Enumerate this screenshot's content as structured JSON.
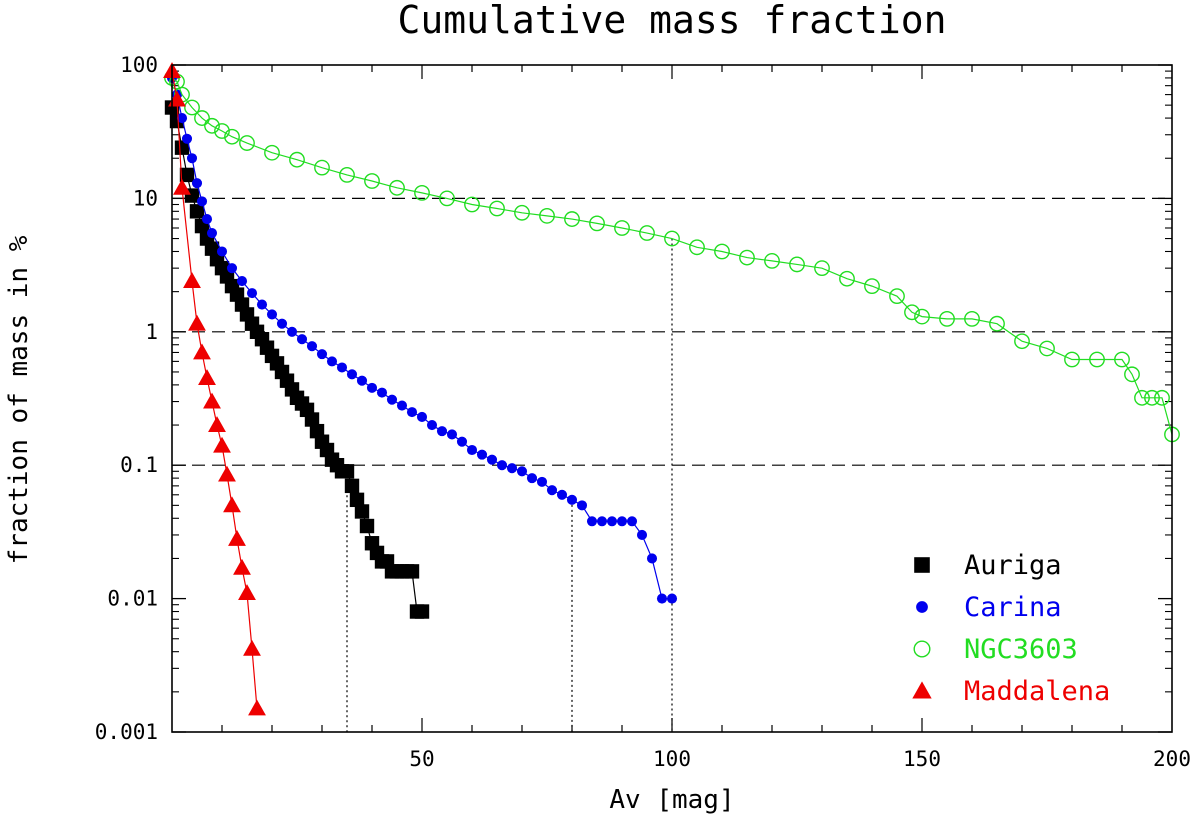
{
  "chart_data": {
    "type": "line",
    "title": "Cumulative mass fraction",
    "xlabel": "Av [mag]",
    "ylabel": "fraction of mass in %",
    "xscale": "linear",
    "yscale": "log",
    "xlim": [
      0,
      200
    ],
    "ylim": [
      0.001,
      100
    ],
    "x_ticks": [
      {
        "value": 50,
        "label": "50"
      },
      {
        "value": 100,
        "label": "100"
      },
      {
        "value": 150,
        "label": "150"
      },
      {
        "value": 200,
        "label": "200"
      }
    ],
    "y_ticks": [
      {
        "value": 100,
        "label": "100"
      },
      {
        "value": 10,
        "label": "10"
      },
      {
        "value": 1,
        "label": "1"
      },
      {
        "value": 0.1,
        "label": "0.1"
      },
      {
        "value": 0.01,
        "label": "0.01"
      },
      {
        "value": 0.001,
        "label": "0.001"
      }
    ],
    "reference_lines": {
      "horizontal_dashed": [
        10,
        1,
        0.1
      ],
      "vertical_dotted": [
        {
          "x": 35,
          "y_top": 0.1
        },
        {
          "x": 80,
          "y_top": 0.055
        },
        {
          "x": 100,
          "y_top": 5
        }
      ]
    },
    "legend_position": "bottom-right",
    "series": [
      {
        "name": "Auriga",
        "color": "#000000",
        "marker": "filled-square",
        "x": [
          0,
          1,
          2,
          3,
          4,
          5,
          6,
          7,
          8,
          9,
          10,
          11,
          12,
          13,
          14,
          15,
          16,
          17,
          18,
          19,
          20,
          21,
          22,
          23,
          24,
          25,
          26,
          27,
          28,
          29,
          30,
          31,
          32,
          33,
          34,
          35,
          36,
          37,
          38,
          39,
          40,
          41,
          42,
          43,
          44,
          45,
          46,
          47,
          48,
          49,
          50
        ],
        "y": [
          48,
          38,
          24,
          15,
          10.5,
          8,
          6.2,
          5,
          4.2,
          3.5,
          3,
          2.6,
          2.2,
          1.9,
          1.6,
          1.35,
          1.15,
          1.0,
          0.88,
          0.76,
          0.66,
          0.58,
          0.5,
          0.43,
          0.37,
          0.32,
          0.29,
          0.26,
          0.22,
          0.18,
          0.15,
          0.13,
          0.11,
          0.1,
          0.09,
          0.09,
          0.07,
          0.055,
          0.045,
          0.035,
          0.026,
          0.022,
          0.019,
          0.019,
          0.016,
          0.016,
          0.016,
          0.016,
          0.016,
          0.008,
          0.008
        ]
      },
      {
        "name": "Carina",
        "color": "#0000ee",
        "marker": "filled-circle",
        "x": [
          0,
          1,
          2,
          3,
          4,
          5,
          6,
          7,
          8,
          10,
          12,
          14,
          16,
          18,
          20,
          22,
          24,
          26,
          28,
          30,
          32,
          34,
          36,
          38,
          40,
          42,
          44,
          46,
          48,
          50,
          52,
          54,
          56,
          58,
          60,
          62,
          64,
          66,
          68,
          70,
          72,
          74,
          76,
          78,
          80,
          82,
          84,
          86,
          88,
          90,
          92,
          94,
          96,
          98,
          100
        ],
        "y": [
          80,
          60,
          40,
          28,
          20,
          13,
          9.5,
          7,
          5.5,
          4,
          3,
          2.4,
          1.95,
          1.6,
          1.35,
          1.15,
          1.0,
          0.88,
          0.78,
          0.68,
          0.6,
          0.54,
          0.48,
          0.43,
          0.38,
          0.35,
          0.31,
          0.28,
          0.25,
          0.23,
          0.2,
          0.18,
          0.17,
          0.15,
          0.13,
          0.12,
          0.11,
          0.1,
          0.095,
          0.09,
          0.08,
          0.075,
          0.065,
          0.06,
          0.055,
          0.05,
          0.038,
          0.038,
          0.038,
          0.038,
          0.038,
          0.03,
          0.02,
          0.01,
          0.01
        ]
      },
      {
        "name": "NGC3603",
        "color": "#22dd22",
        "marker": "open-circle",
        "x": [
          0,
          1,
          2,
          4,
          6,
          8,
          10,
          12,
          15,
          20,
          25,
          30,
          35,
          40,
          45,
          50,
          55,
          60,
          65,
          70,
          75,
          80,
          85,
          90,
          95,
          100,
          105,
          110,
          115,
          120,
          125,
          130,
          135,
          140,
          145,
          148,
          150,
          155,
          160,
          165,
          170,
          175,
          180,
          185,
          190,
          192,
          194,
          196,
          198,
          200
        ],
        "y": [
          80,
          75,
          60,
          48,
          40,
          35,
          32,
          29,
          26,
          22,
          19.5,
          17,
          15,
          13.5,
          12,
          11,
          10,
          9,
          8.4,
          7.8,
          7.4,
          7,
          6.5,
          6,
          5.5,
          5,
          4.3,
          4,
          3.6,
          3.4,
          3.2,
          3,
          2.5,
          2.2,
          1.85,
          1.4,
          1.3,
          1.25,
          1.25,
          1.15,
          0.85,
          0.75,
          0.62,
          0.62,
          0.62,
          0.48,
          0.32,
          0.32,
          0.32,
          0.17
        ]
      },
      {
        "name": "Maddalena",
        "color": "#ee0000",
        "marker": "filled-triangle",
        "x": [
          0,
          1,
          2,
          4,
          5,
          6,
          7,
          8,
          9,
          10,
          11,
          12,
          13,
          14,
          15,
          16,
          17
        ],
        "y": [
          90,
          55,
          12,
          2.4,
          1.15,
          0.7,
          0.45,
          0.3,
          0.2,
          0.14,
          0.085,
          0.05,
          0.028,
          0.017,
          0.011,
          0.0042,
          0.0015
        ]
      }
    ]
  }
}
